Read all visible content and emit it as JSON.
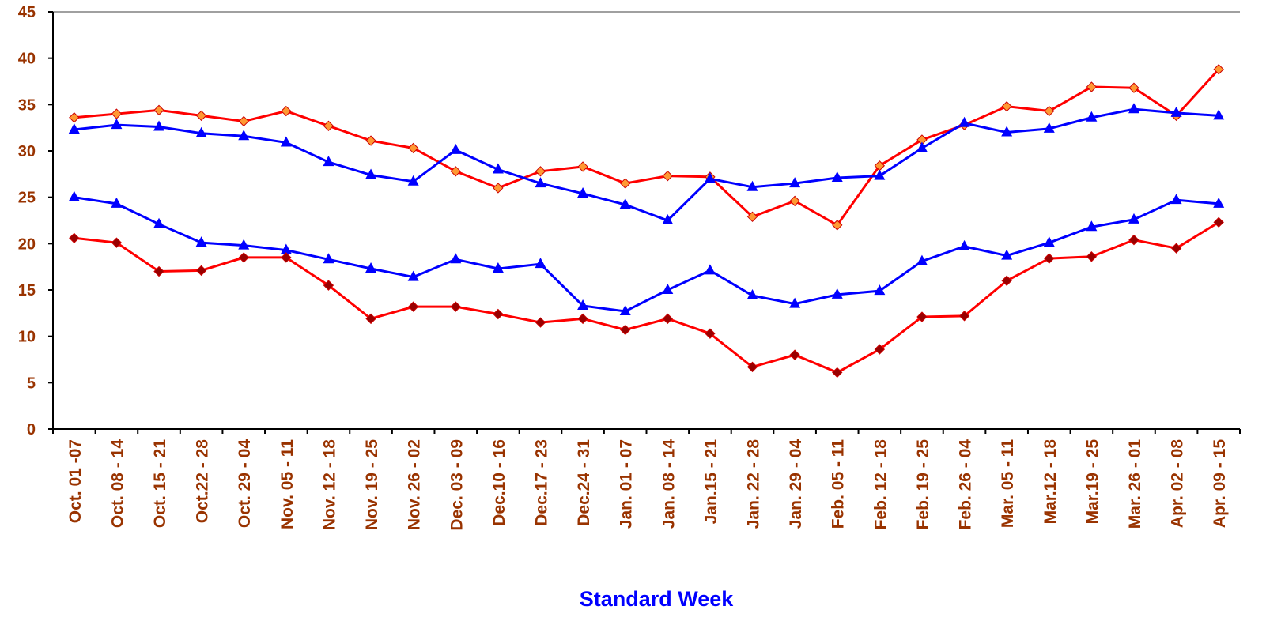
{
  "chart_data": {
    "type": "line",
    "xlabel": "Standard Week",
    "categories": [
      "Oct. 01 -07",
      "Oct. 08 - 14",
      "Oct. 15 - 21",
      "Oct.22 - 28",
      "Oct. 29 - 04",
      "Nov. 05 - 11",
      "Nov. 12 - 18",
      "Nov. 19 - 25",
      "Nov. 26 - 02",
      "Dec. 03 - 09",
      "Dec.10 - 16",
      "Dec.17 - 23",
      "Dec.24 - 31",
      "Jan. 01 - 07",
      "Jan. 08 - 14",
      "Jan.15 - 21",
      "Jan. 22 - 28",
      "Jan. 29 - 04",
      "Feb. 05 - 11",
      "Feb. 12 - 18",
      "Feb. 19 - 25",
      "Feb. 26 - 04",
      "Mar. 05 - 11",
      "Mar.12 - 18",
      "Mar.19 - 25",
      "Mar. 26 - 01",
      "Apr. 02 - 08",
      "Apr. 09 - 15"
    ],
    "series": [
      {
        "color": "#ff0000",
        "marker": "diamond",
        "marker_color": "#ff9933",
        "values": [
          33.6,
          34.0,
          34.4,
          33.8,
          33.2,
          34.3,
          32.7,
          31.1,
          30.3,
          27.8,
          26.0,
          27.8,
          28.3,
          26.5,
          27.3,
          27.2,
          22.9,
          24.6,
          22.0,
          28.4,
          31.2,
          32.8,
          34.8,
          34.3,
          36.9,
          36.8,
          33.8,
          38.8
        ]
      },
      {
        "color": "#0000ff",
        "marker": "triangle",
        "marker_color": "#0000ff",
        "values": [
          32.3,
          32.8,
          32.6,
          31.9,
          31.6,
          30.9,
          28.8,
          27.4,
          26.7,
          30.1,
          28.0,
          26.5,
          25.4,
          24.2,
          22.5,
          27.0,
          26.1,
          26.5,
          27.1,
          27.3,
          30.3,
          33.0,
          32.0,
          32.4,
          33.6,
          34.5,
          34.1,
          33.8
        ]
      },
      {
        "color": "#0000ff",
        "marker": "triangle",
        "marker_color": "#0000ff",
        "values": [
          25.0,
          24.3,
          22.1,
          20.1,
          19.8,
          19.3,
          18.3,
          17.3,
          16.4,
          18.3,
          17.3,
          17.8,
          13.3,
          12.7,
          15.0,
          17.1,
          14.4,
          13.5,
          14.5,
          14.9,
          18.1,
          19.7,
          18.7,
          20.1,
          21.8,
          22.6,
          24.7,
          24.3
        ]
      },
      {
        "color": "#ff0000",
        "marker": "diamond",
        "marker_color": "#990000",
        "values": [
          20.6,
          20.1,
          17.0,
          17.1,
          18.5,
          18.5,
          15.5,
          11.9,
          13.2,
          13.2,
          12.4,
          11.5,
          11.9,
          10.7,
          11.9,
          10.3,
          6.7,
          8.0,
          6.1,
          8.6,
          12.1,
          12.2,
          16.0,
          18.4,
          18.6,
          20.4,
          19.5,
          22.3
        ]
      }
    ],
    "ylim": [
      0,
      45
    ],
    "yticks": [
      0,
      5,
      10,
      15,
      20,
      25,
      30,
      35,
      40,
      45
    ]
  }
}
